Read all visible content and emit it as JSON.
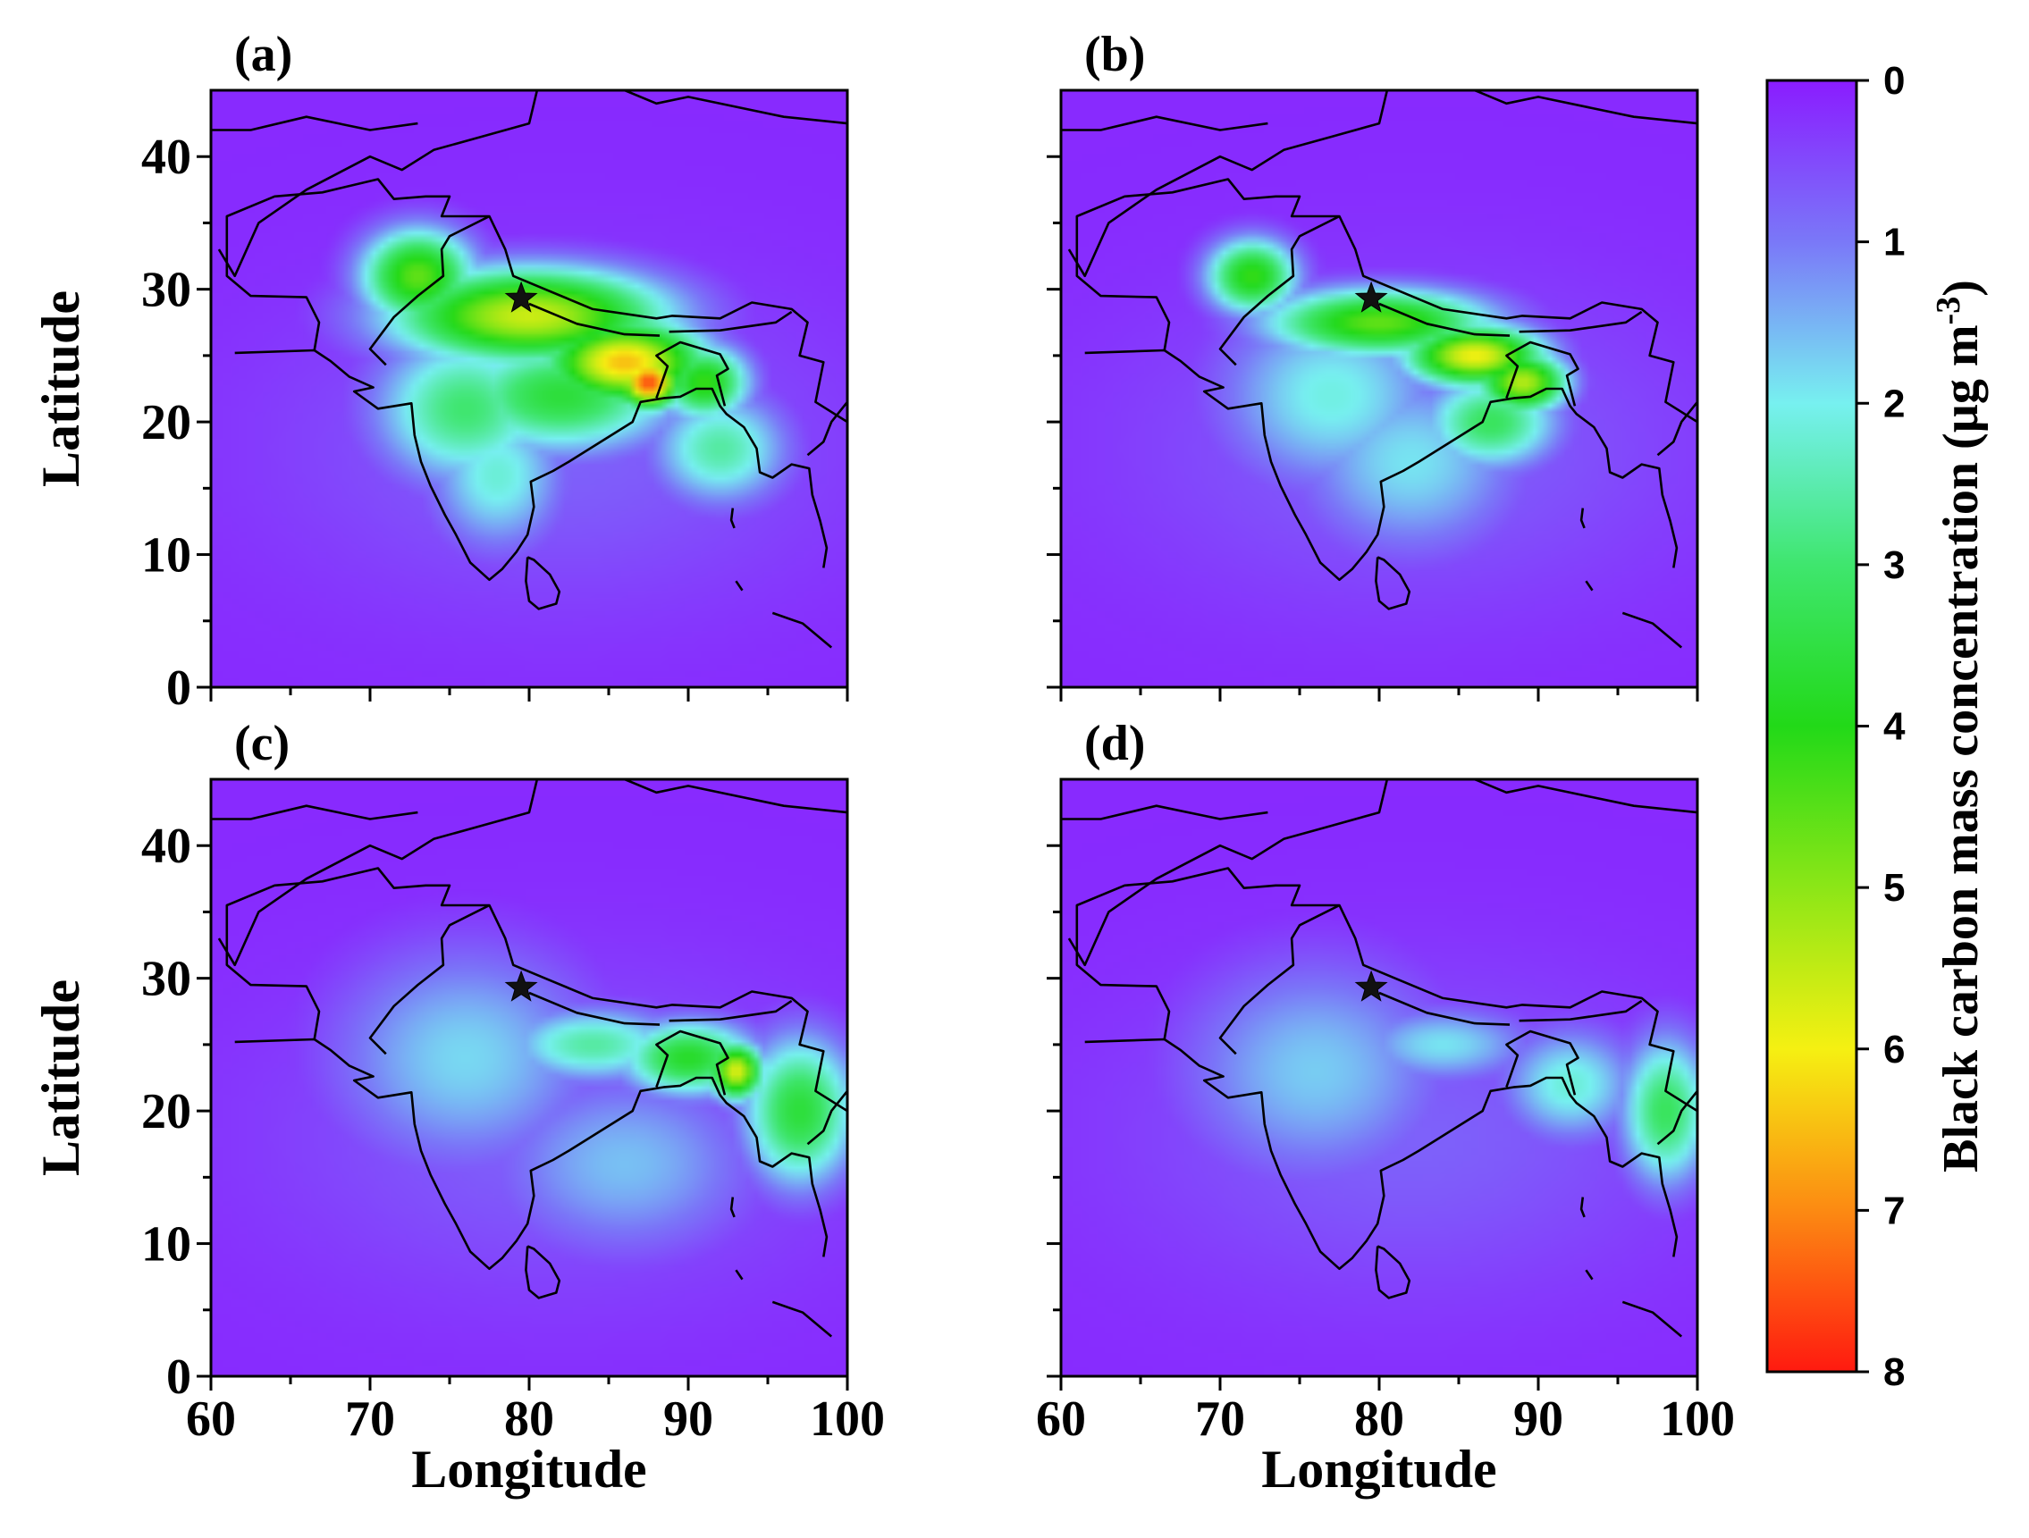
{
  "panels": [
    {
      "id": "a",
      "label": "(a)",
      "show_y_labels": true,
      "show_x_labels": false,
      "hotspots": [
        {
          "lon": 80,
          "lat": 28,
          "value": 5.6,
          "sx": 6,
          "sy": 2.5
        },
        {
          "lon": 86,
          "lat": 24.5,
          "value": 6.5,
          "sx": 3.5,
          "sy": 2.2
        },
        {
          "lon": 87.5,
          "lat": 23,
          "value": 7.6,
          "sx": 1.4,
          "sy": 1.4
        },
        {
          "lon": 73,
          "lat": 31,
          "value": 4.6,
          "sx": 2.5,
          "sy": 2.5
        },
        {
          "lon": 82,
          "lat": 22,
          "value": 3.6,
          "sx": 5,
          "sy": 3
        },
        {
          "lon": 76,
          "lat": 21,
          "value": 3.0,
          "sx": 4,
          "sy": 4
        },
        {
          "lon": 78,
          "lat": 16,
          "value": 2.2,
          "sx": 3,
          "sy": 4
        },
        {
          "lon": 91,
          "lat": 23,
          "value": 4.2,
          "sx": 2,
          "sy": 2
        },
        {
          "lon": 92,
          "lat": 18,
          "value": 2.6,
          "sx": 3,
          "sy": 3
        }
      ]
    },
    {
      "id": "b",
      "label": "(b)",
      "show_y_labels": false,
      "show_x_labels": false,
      "hotspots": [
        {
          "lon": 80,
          "lat": 27.5,
          "value": 4.6,
          "sx": 5,
          "sy": 1.8
        },
        {
          "lon": 86,
          "lat": 25,
          "value": 6.0,
          "sx": 3,
          "sy": 1.6
        },
        {
          "lon": 89,
          "lat": 23,
          "value": 5.4,
          "sx": 2,
          "sy": 1.6
        },
        {
          "lon": 72,
          "lat": 31,
          "value": 4.2,
          "sx": 2,
          "sy": 2
        },
        {
          "lon": 87,
          "lat": 20,
          "value": 3.2,
          "sx": 3,
          "sy": 2.5
        },
        {
          "lon": 77,
          "lat": 22,
          "value": 2.1,
          "sx": 5,
          "sy": 5
        },
        {
          "lon": 82,
          "lat": 17,
          "value": 1.9,
          "sx": 5,
          "sy": 5
        }
      ]
    },
    {
      "id": "c",
      "label": "(c)",
      "show_y_labels": true,
      "show_x_labels": true,
      "hotspots": [
        {
          "lon": 93,
          "lat": 23,
          "value": 5.8,
          "sx": 1.2,
          "sy": 1.5
        },
        {
          "lon": 90,
          "lat": 24,
          "value": 3.8,
          "sx": 3,
          "sy": 2
        },
        {
          "lon": 97,
          "lat": 20,
          "value": 3.6,
          "sx": 2.5,
          "sy": 4
        },
        {
          "lon": 84,
          "lat": 25,
          "value": 2.6,
          "sx": 4,
          "sy": 2
        },
        {
          "lon": 76,
          "lat": 24,
          "value": 1.8,
          "sx": 6,
          "sy": 6
        },
        {
          "lon": 86,
          "lat": 16,
          "value": 1.6,
          "sx": 6,
          "sy": 5
        }
      ]
    },
    {
      "id": "d",
      "label": "(d)",
      "show_y_labels": false,
      "show_x_labels": true,
      "hotspots": [
        {
          "lon": 98,
          "lat": 20,
          "value": 3.2,
          "sx": 2,
          "sy": 4
        },
        {
          "lon": 92,
          "lat": 22,
          "value": 2.2,
          "sx": 3,
          "sy": 3
        },
        {
          "lon": 84,
          "lat": 25,
          "value": 1.9,
          "sx": 4,
          "sy": 2
        },
        {
          "lon": 76,
          "lat": 23,
          "value": 1.7,
          "sx": 6,
          "sy": 6
        }
      ]
    }
  ],
  "axes": {
    "x_label": "Longitude",
    "y_label": "Latitude",
    "x_ticks": [
      "60",
      "70",
      "80",
      "90",
      "100"
    ],
    "y_ticks": [
      "0",
      "10",
      "20",
      "30",
      "40"
    ],
    "x_range": [
      60,
      100
    ],
    "y_range": [
      0,
      45
    ]
  },
  "marker": {
    "symbol": "star",
    "lon": 79.5,
    "lat": 29.3
  },
  "colorbar": {
    "title": "Black carbon mass concentration (µg m",
    "title_sup": "-3",
    "title_end": ")",
    "ticks": [
      "0",
      "1",
      "2",
      "3",
      "4",
      "5",
      "6",
      "7",
      "8"
    ],
    "range": [
      0,
      8
    ],
    "stops": [
      {
        "v": 0,
        "color": "#8a1cff"
      },
      {
        "v": 1,
        "color": "#7a78f8"
      },
      {
        "v": 2,
        "color": "#77f0f0"
      },
      {
        "v": 3,
        "color": "#3fe66e"
      },
      {
        "v": 4,
        "color": "#22d918"
      },
      {
        "v": 5,
        "color": "#8ce617"
      },
      {
        "v": 6,
        "color": "#f5f012"
      },
      {
        "v": 7,
        "color": "#fc8a12"
      },
      {
        "v": 8,
        "color": "#ff1a10"
      }
    ]
  },
  "chart_data": {
    "type": "heatmap",
    "title": "",
    "xlabel": "Longitude",
    "ylabel": "Latitude",
    "xlim": [
      60,
      100
    ],
    "ylim": [
      0,
      45
    ],
    "colorbar_label": "Black carbon mass concentration (µg m-3)",
    "colorbar_range": [
      0,
      8
    ],
    "panels": [
      "(a)",
      "(b)",
      "(c)",
      "(d)"
    ]
  }
}
